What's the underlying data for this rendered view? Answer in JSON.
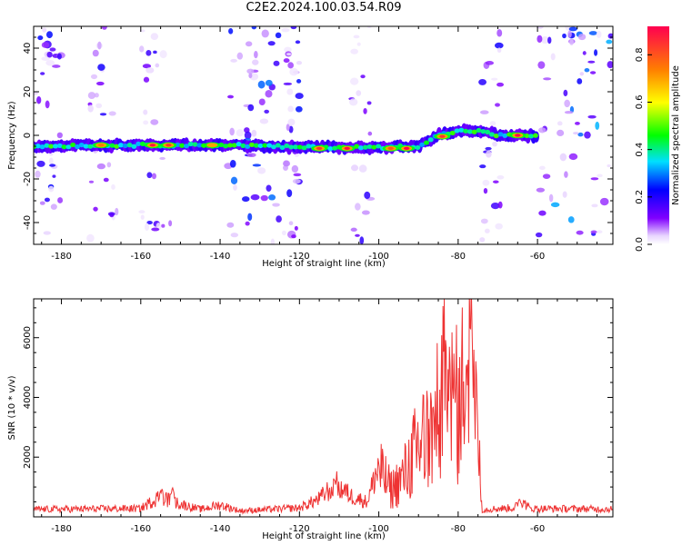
{
  "title": "C2E2.2024.100.03.54.R09",
  "chart_data": [
    {
      "type": "heatmap",
      "title": "C2E2.2024.100.03.54.R09",
      "xlabel": "Height of straight line (km)",
      "ylabel": "Frequency (Hz)",
      "xlim": [
        -187,
        -41
      ],
      "ylim": [
        -50,
        50
      ],
      "x_ticks": [
        -180,
        -160,
        -140,
        -120,
        -100,
        -80,
        -60
      ],
      "y_ticks": [
        -40,
        -20,
        0,
        20,
        40
      ],
      "colorbar": {
        "label": "Normalized spectral amplitude",
        "range": [
          0,
          0.92
        ],
        "ticks": [
          0.0,
          0.2,
          0.4,
          0.6,
          0.8
        ],
        "colormap": [
          "#ffffff",
          "#8000ff",
          "#0000ff",
          "#00ffff",
          "#00ff00",
          "#ffff00",
          "#ff8000",
          "#ff0040"
        ]
      },
      "ridge": {
        "points": [
          {
            "x": -187,
            "f": -5
          },
          {
            "x": -170,
            "f": -4.5
          },
          {
            "x": -150,
            "f": -4.5
          },
          {
            "x": -135,
            "f": -4.5
          },
          {
            "x": -120,
            "f": -5.5
          },
          {
            "x": -100,
            "f": -5.5
          },
          {
            "x": -90,
            "f": -5
          },
          {
            "x": -85,
            "f": 0
          },
          {
            "x": -80,
            "f": 2
          },
          {
            "x": -75,
            "f": 2
          },
          {
            "x": -70,
            "f": 0
          },
          {
            "x": -60,
            "f": 0
          }
        ],
        "peaks": [
          {
            "x": -157,
            "f": -4.5,
            "v": 0.9
          },
          {
            "x": -153,
            "f": -4.5,
            "v": 0.85
          },
          {
            "x": -142,
            "f": -4.5,
            "v": 0.7
          },
          {
            "x": -115,
            "f": -6,
            "v": 0.85
          },
          {
            "x": -108,
            "f": -6,
            "v": 0.9
          },
          {
            "x": -93,
            "f": -6,
            "v": 0.92
          },
          {
            "x": -97,
            "f": -6,
            "v": 0.8
          },
          {
            "x": -84,
            "f": -0.5,
            "v": 0.85
          },
          {
            "x": -65,
            "f": 0,
            "v": 0.92
          },
          {
            "x": -170,
            "f": -4.5,
            "v": 0.75
          }
        ]
      },
      "noise_bands": [
        {
          "x": [
            -187,
            -180
          ],
          "density": 0.5
        },
        {
          "x": [
            -173,
            -166
          ],
          "density": 0.4
        },
        {
          "x": [
            -160,
            -152
          ],
          "density": 0.35
        },
        {
          "x": [
            -138,
            -125
          ],
          "density": 0.75
        },
        {
          "x": [
            -124,
            -120
          ],
          "density": 0.5
        },
        {
          "x": [
            -107,
            -102
          ],
          "density": 0.3
        },
        {
          "x": [
            -74,
            -69
          ],
          "density": 0.4
        },
        {
          "x": [
            -60,
            -41
          ],
          "density": 0.9
        }
      ]
    },
    {
      "type": "line",
      "xlabel": "Height of straight line (km)",
      "ylabel": "SNR (10 * v/v)",
      "xlim": [
        -187,
        -41
      ],
      "ylim": [
        0,
        7300
      ],
      "x_ticks": [
        -180,
        -160,
        -140,
        -120,
        -100,
        -80,
        -60
      ],
      "y_ticks": [
        2000,
        4000,
        6000
      ],
      "color": "#ee3333",
      "baseline": 250,
      "anchors": [
        {
          "x": -187,
          "y": 250
        },
        {
          "x": -160,
          "y": 280
        },
        {
          "x": -155,
          "y": 700
        },
        {
          "x": -152,
          "y": 500
        },
        {
          "x": -145,
          "y": 250
        },
        {
          "x": -140,
          "y": 400
        },
        {
          "x": -135,
          "y": 200
        },
        {
          "x": -120,
          "y": 300
        },
        {
          "x": -115,
          "y": 600
        },
        {
          "x": -111,
          "y": 1100
        },
        {
          "x": -107,
          "y": 700
        },
        {
          "x": -103,
          "y": 500
        },
        {
          "x": -100,
          "y": 1700
        },
        {
          "x": -97,
          "y": 900
        },
        {
          "x": -94,
          "y": 1300
        },
        {
          "x": -90,
          "y": 2400
        },
        {
          "x": -86,
          "y": 3000
        },
        {
          "x": -83,
          "y": 4500
        },
        {
          "x": -80,
          "y": 3600
        },
        {
          "x": -77,
          "y": 5100
        },
        {
          "x": -75.5,
          "y": 3600
        },
        {
          "x": -74,
          "y": 250
        },
        {
          "x": -66,
          "y": 300
        },
        {
          "x": -64,
          "y": 550
        },
        {
          "x": -62,
          "y": 280
        },
        {
          "x": -41,
          "y": 260
        }
      ],
      "peaks": [
        {
          "x": -99,
          "y": 2500
        },
        {
          "x": -91,
          "y": 2900
        },
        {
          "x": -89,
          "y": 3400
        },
        {
          "x": -87,
          "y": 3700
        },
        {
          "x": -85,
          "y": 3300
        },
        {
          "x": -83,
          "y": 5700
        },
        {
          "x": -82,
          "y": 5300
        },
        {
          "x": -80.5,
          "y": 5000
        },
        {
          "x": -79,
          "y": 4400
        },
        {
          "x": -78,
          "y": 5800
        },
        {
          "x": -76.5,
          "y": 7300
        },
        {
          "x": -75.5,
          "y": 6100
        },
        {
          "x": -111,
          "y": 1250
        },
        {
          "x": -155,
          "y": 900
        },
        {
          "x": -152,
          "y": 1100
        },
        {
          "x": -64.5,
          "y": 650
        }
      ]
    }
  ]
}
